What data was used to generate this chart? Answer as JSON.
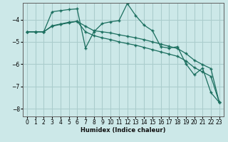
{
  "xlabel": "Humidex (Indice chaleur)",
  "x": [
    0,
    1,
    2,
    3,
    4,
    5,
    6,
    7,
    8,
    9,
    10,
    11,
    12,
    13,
    14,
    15,
    16,
    17,
    18,
    19,
    20,
    21,
    22,
    23
  ],
  "line1": [
    -4.55,
    -4.55,
    -4.55,
    -3.65,
    -3.6,
    -3.55,
    -3.52,
    -5.28,
    -4.55,
    -4.18,
    -4.1,
    -4.05,
    -3.28,
    -3.82,
    -4.25,
    -4.5,
    -5.22,
    -5.28,
    -5.22,
    -5.98,
    -6.48,
    -6.18,
    -7.28,
    -7.72
  ],
  "line2": [
    -4.55,
    -4.55,
    -4.55,
    -4.3,
    -4.22,
    -4.15,
    -4.08,
    -4.3,
    -4.5,
    -4.55,
    -4.6,
    -4.68,
    -4.75,
    -4.82,
    -4.9,
    -5.0,
    -5.1,
    -5.2,
    -5.3,
    -5.52,
    -5.82,
    -6.02,
    -6.2,
    -7.72
  ],
  "line3": [
    -4.55,
    -4.55,
    -4.55,
    -4.28,
    -4.2,
    -4.12,
    -4.08,
    -4.55,
    -4.72,
    -4.82,
    -4.9,
    -5.0,
    -5.08,
    -5.15,
    -5.25,
    -5.35,
    -5.45,
    -5.55,
    -5.65,
    -5.85,
    -6.15,
    -6.35,
    -6.55,
    -7.72
  ],
  "bg_color": "#cce8e8",
  "grid_color": "#aacccc",
  "line_color": "#1a6e5e",
  "xlim": [
    -0.5,
    23.5
  ],
  "ylim": [
    -8.35,
    -3.25
  ],
  "yticks": [
    -8,
    -7,
    -6,
    -5,
    -4
  ],
  "xticks": [
    0,
    1,
    2,
    3,
    4,
    5,
    6,
    7,
    8,
    9,
    10,
    11,
    12,
    13,
    14,
    15,
    16,
    17,
    18,
    19,
    20,
    21,
    22,
    23
  ]
}
